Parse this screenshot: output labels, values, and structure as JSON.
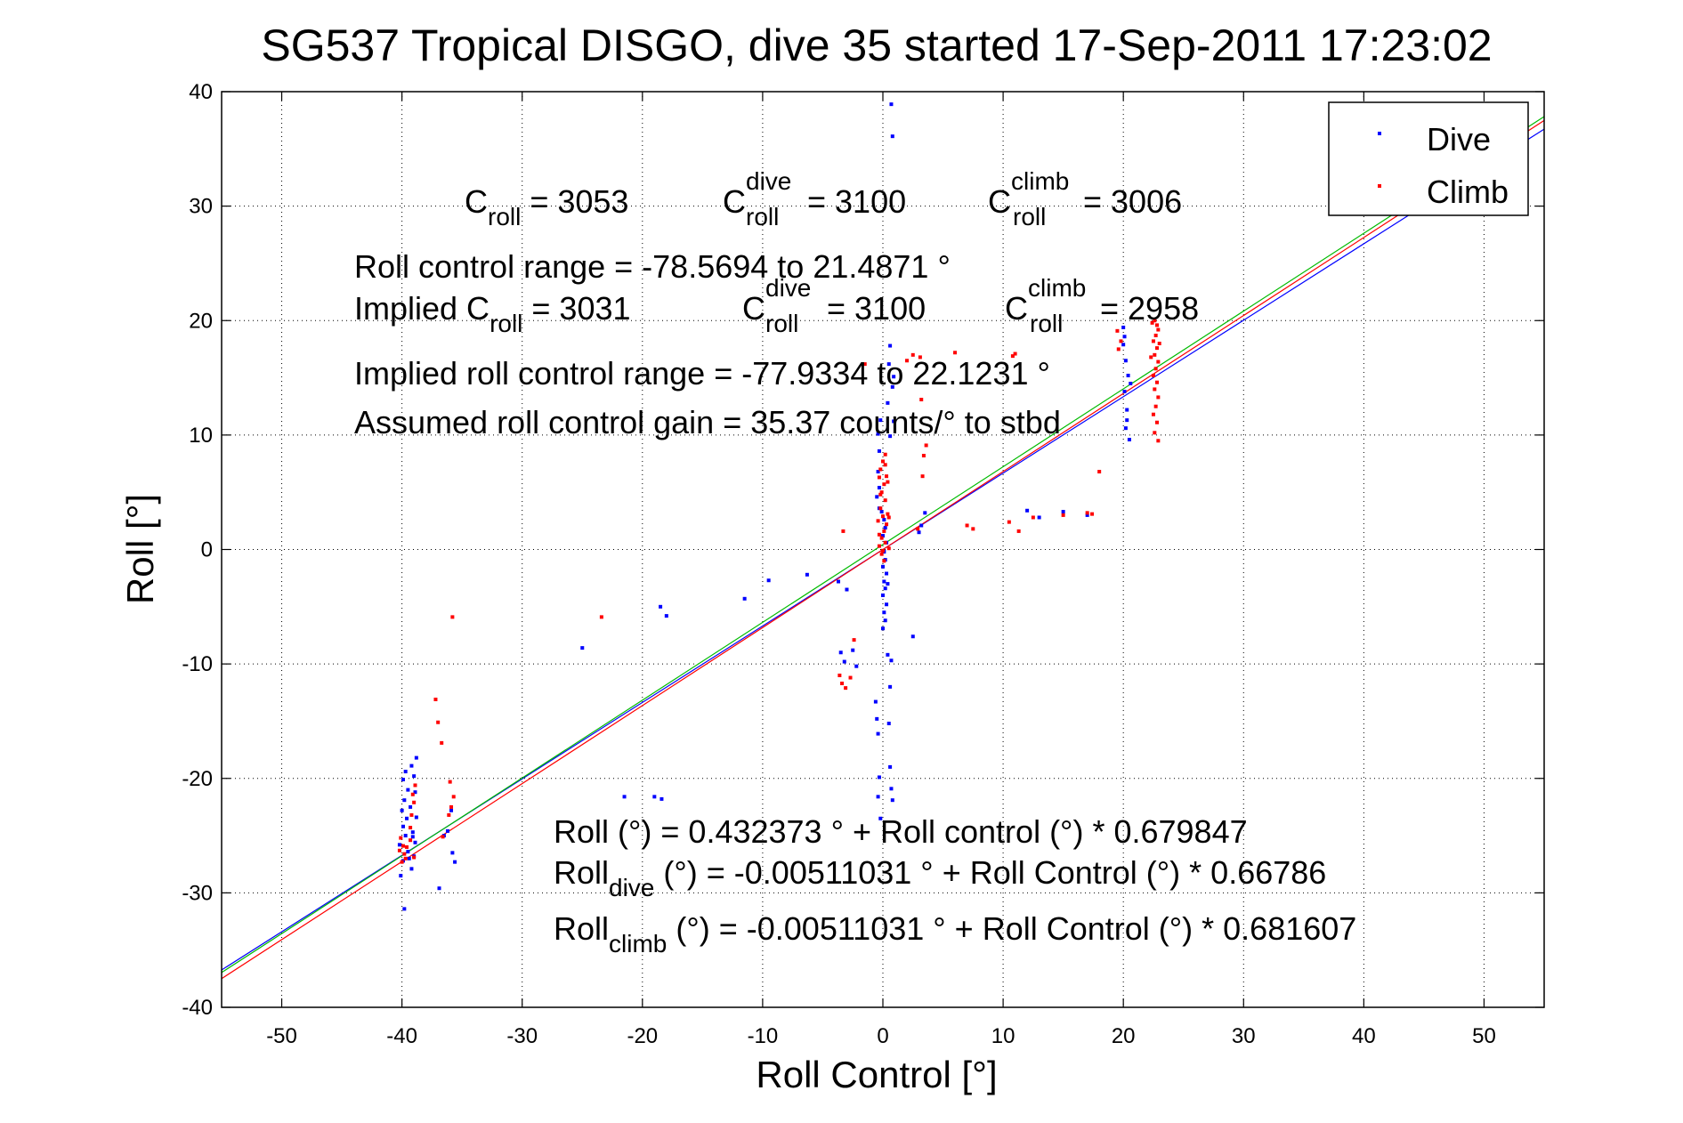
{
  "title": "SG537 Tropical DISGO, dive 35 started 17-Sep-2011 17:23:02",
  "chart_data": {
    "type": "scatter",
    "xlabel": "Roll Control [°]",
    "ylabel": "Roll [°]",
    "xlim": [
      -55,
      55
    ],
    "ylim": [
      -40,
      40
    ],
    "xticks": [
      -50,
      -40,
      -30,
      -20,
      -10,
      0,
      10,
      20,
      30,
      40,
      50
    ],
    "yticks": [
      -40,
      -30,
      -20,
      -10,
      0,
      10,
      20,
      30,
      40
    ],
    "grid": true,
    "legend_position": "top-right",
    "legend": [
      {
        "label": "Dive",
        "color": "#0000ff"
      },
      {
        "label": "Climb",
        "color": "#ff0000"
      }
    ],
    "fit_lines": [
      {
        "color": "#0000ff",
        "intercept": -0.00511031,
        "slope": 0.66786
      },
      {
        "color": "#ff0000",
        "intercept": -0.00511031,
        "slope": 0.681607
      },
      {
        "color": "#00bb00",
        "intercept": 0.432373,
        "slope": 0.679847
      }
    ],
    "annotations": {
      "c_roll": "= 3053",
      "c_roll_dive": "= 3100",
      "c_roll_climb": "= 3006",
      "range": "Roll control range = -78.5694 to 21.4871 °",
      "implied_c_roll": "= 3031",
      "implied_c_roll_dive": "= 3100",
      "implied_c_roll_climb": "= 2958",
      "implied_range": "Implied roll control range = -77.9334 to 22.1231 °",
      "gain": "Assumed roll control gain = 35.37 counts/° to stbd",
      "eq_all": "Roll (°) = 0.432373 ° + Roll control (°) * 0.679847",
      "eq_dive": "(°) = -0.00511031 ° + Roll Control (°) * 0.66786",
      "eq_climb": "(°) = -0.00511031 ° + Roll Control (°) * 0.681607",
      "c_label": "C",
      "roll_label": "Roll",
      "implied_prefix": "Implied C",
      "sub_roll": "roll",
      "sup_dive": "dive",
      "sup_climb": "climb",
      "sub_dive": "dive",
      "sub_climb": "climb"
    },
    "series": [
      {
        "name": "Dive",
        "color": "#0000ff",
        "points": [
          [
            -39.8,
            -31.4
          ],
          [
            -40.1,
            -28.5
          ],
          [
            -39.9,
            -27.2
          ],
          [
            -39.5,
            -26.4
          ],
          [
            -40.2,
            -25.8
          ],
          [
            -39.7,
            -25.0
          ],
          [
            -39.9,
            -24.2
          ],
          [
            -39.6,
            -23.5
          ],
          [
            -40.0,
            -22.8
          ],
          [
            -39.8,
            -21.9
          ],
          [
            -39.5,
            -21.0
          ],
          [
            -39.9,
            -20.1
          ],
          [
            -39.7,
            -19.4
          ],
          [
            -39.2,
            -27.9
          ],
          [
            -39.0,
            -26.8
          ],
          [
            -38.9,
            -25.6
          ],
          [
            -39.1,
            -24.7
          ],
          [
            -38.8,
            -23.4
          ],
          [
            -39.3,
            -22.5
          ],
          [
            -38.9,
            -21.2
          ],
          [
            -39.0,
            -19.8
          ],
          [
            -39.2,
            -18.9
          ],
          [
            -38.8,
            -18.2
          ],
          [
            -39.4,
            -27.0
          ],
          [
            -39.1,
            -25.1
          ],
          [
            -36.9,
            -29.6
          ],
          [
            -36.5,
            -25.0
          ],
          [
            -36.2,
            -24.6
          ],
          [
            -35.8,
            -26.5
          ],
          [
            -35.6,
            -27.3
          ],
          [
            -35.9,
            -22.8
          ],
          [
            -25.0,
            -8.6
          ],
          [
            -21.5,
            -21.6
          ],
          [
            -19.0,
            -21.6
          ],
          [
            -18.4,
            -21.8
          ],
          [
            -18.5,
            -5.0
          ],
          [
            -18.0,
            -5.8
          ],
          [
            -11.5,
            -4.3
          ],
          [
            -9.5,
            -2.7
          ],
          [
            -6.3,
            -2.2
          ],
          [
            -3.7,
            -2.8
          ],
          [
            -3.5,
            -9.0
          ],
          [
            -3.2,
            -9.8
          ],
          [
            -3.0,
            -3.5
          ],
          [
            -2.5,
            -8.8
          ],
          [
            -2.2,
            -10.2
          ],
          [
            -0.6,
            -13.3
          ],
          [
            -0.5,
            -14.8
          ],
          [
            -0.3,
            -19.9
          ],
          [
            -0.4,
            -21.6
          ],
          [
            -0.2,
            -23.5
          ],
          [
            -0.4,
            -16.1
          ],
          [
            0.6,
            -19.0
          ],
          [
            0.7,
            -20.9
          ],
          [
            0.8,
            -21.9
          ],
          [
            0.5,
            -15.2
          ],
          [
            0.6,
            -12.0
          ],
          [
            0.7,
            -9.7
          ],
          [
            0.4,
            -9.2
          ],
          [
            -0.3,
            5.4
          ],
          [
            -0.4,
            6.8
          ],
          [
            -0.3,
            8.6
          ],
          [
            -0.4,
            10.1
          ],
          [
            -0.2,
            11.3
          ],
          [
            -0.5,
            4.6
          ],
          [
            -0.3,
            3.6
          ],
          [
            0.7,
            38.9
          ],
          [
            0.8,
            36.1
          ],
          [
            0.6,
            17.8
          ],
          [
            0.5,
            16.2
          ],
          [
            0.9,
            15.1
          ],
          [
            0.8,
            14.2
          ],
          [
            0.4,
            12.8
          ],
          [
            0.9,
            11.2
          ],
          [
            0.6,
            9.9
          ],
          [
            0.1,
            2.6
          ],
          [
            0.2,
            1.9
          ],
          [
            0.0,
            1.2
          ],
          [
            0.3,
            0.6
          ],
          [
            0.1,
            -0.2
          ],
          [
            0.2,
            -0.9
          ],
          [
            0.0,
            -1.5
          ],
          [
            0.3,
            -2.1
          ],
          [
            0.1,
            -2.8
          ],
          [
            0.2,
            -3.4
          ],
          [
            0.0,
            -4.0
          ],
          [
            0.3,
            -4.8
          ],
          [
            0.1,
            -5.5
          ],
          [
            0.2,
            -6.2
          ],
          [
            0.0,
            -6.9
          ],
          [
            -0.1,
            3.3
          ],
          [
            0.4,
            -3.0
          ],
          [
            2.5,
            -7.6
          ],
          [
            3.0,
            1.5
          ],
          [
            3.2,
            2.1
          ],
          [
            3.5,
            3.2
          ],
          [
            12.0,
            3.4
          ],
          [
            13.0,
            2.8
          ],
          [
            15.0,
            3.3
          ],
          [
            17.0,
            3.0
          ],
          [
            20.0,
            17.9
          ],
          [
            20.2,
            16.5
          ],
          [
            20.4,
            15.2
          ],
          [
            20.1,
            13.8
          ],
          [
            20.3,
            12.2
          ],
          [
            20.2,
            10.6
          ],
          [
            20.5,
            9.6
          ],
          [
            20.0,
            19.4
          ],
          [
            20.6,
            14.5
          ],
          [
            20.3,
            11.3
          ],
          [
            20.1,
            18.6
          ]
        ]
      },
      {
        "name": "Climb",
        "color": "#ff0000",
        "points": [
          [
            -40.0,
            -27.3
          ],
          [
            -39.8,
            -26.6
          ],
          [
            -39.9,
            -25.9
          ],
          [
            -40.1,
            -25.2
          ],
          [
            -39.6,
            -26.0
          ],
          [
            -39.7,
            -27.0
          ],
          [
            -40.2,
            -26.3
          ],
          [
            -39.3,
            -24.3
          ],
          [
            -39.2,
            -23.2
          ],
          [
            -39.0,
            -22.1
          ],
          [
            -39.1,
            -21.4
          ],
          [
            -38.9,
            -20.6
          ],
          [
            -39.3,
            -25.4
          ],
          [
            -39.0,
            -26.9
          ],
          [
            -37.2,
            -13.1
          ],
          [
            -37.0,
            -15.1
          ],
          [
            -36.7,
            -16.9
          ],
          [
            -36.6,
            -25.1
          ],
          [
            -35.8,
            -5.9
          ],
          [
            -36.0,
            -20.3
          ],
          [
            -35.7,
            -21.6
          ],
          [
            -36.1,
            -23.2
          ],
          [
            -35.9,
            -22.5
          ],
          [
            -23.4,
            -5.9
          ],
          [
            -3.3,
            1.6
          ],
          [
            -3.4,
            -11.7
          ],
          [
            -3.1,
            -12.1
          ],
          [
            -2.7,
            -11.2
          ],
          [
            -2.4,
            -7.9
          ],
          [
            -3.6,
            -11.0
          ],
          [
            -0.3,
            0.3
          ],
          [
            -0.1,
            1.0
          ],
          [
            0.1,
            1.6
          ],
          [
            0.3,
            2.2
          ],
          [
            0.0,
            2.9
          ],
          [
            -0.2,
            3.6
          ],
          [
            0.2,
            4.3
          ],
          [
            -0.1,
            5.0
          ],
          [
            0.1,
            5.7
          ],
          [
            0.3,
            6.4
          ],
          [
            -0.2,
            7.0
          ],
          [
            0.0,
            7.7
          ],
          [
            0.2,
            8.3
          ],
          [
            -0.1,
            -0.4
          ],
          [
            0.1,
            -1.0
          ],
          [
            0.2,
            0.6
          ],
          [
            -0.3,
            1.3
          ],
          [
            0.4,
            3.1
          ],
          [
            -0.4,
            2.5
          ],
          [
            0.5,
            0.1
          ],
          [
            0.0,
            -0.1
          ],
          [
            -0.2,
            4.8
          ],
          [
            0.4,
            5.9
          ],
          [
            -0.3,
            6.3
          ],
          [
            0.2,
            7.4
          ],
          [
            0.5,
            2.8
          ],
          [
            -1.5,
            16.2
          ],
          [
            2.0,
            16.5
          ],
          [
            2.5,
            17.0
          ],
          [
            3.1,
            16.8
          ],
          [
            3.2,
            13.1
          ],
          [
            3.6,
            9.1
          ],
          [
            3.3,
            6.4
          ],
          [
            2.9,
            1.8
          ],
          [
            3.4,
            8.2
          ],
          [
            6.0,
            17.2
          ],
          [
            10.8,
            16.9
          ],
          [
            11.0,
            17.1
          ],
          [
            7.0,
            2.1
          ],
          [
            7.5,
            1.8
          ],
          [
            10.5,
            2.4
          ],
          [
            11.3,
            1.6
          ],
          [
            12.5,
            2.8
          ],
          [
            15.0,
            3.0
          ],
          [
            17.0,
            3.2
          ],
          [
            17.4,
            3.1
          ],
          [
            18.0,
            6.8
          ],
          [
            22.6,
            20.0
          ],
          [
            22.8,
            19.6
          ],
          [
            22.9,
            19.2
          ],
          [
            22.7,
            18.7
          ],
          [
            22.5,
            18.2
          ],
          [
            22.8,
            17.6
          ],
          [
            22.6,
            17.0
          ],
          [
            22.9,
            16.4
          ],
          [
            22.7,
            15.8
          ],
          [
            22.5,
            15.2
          ],
          [
            22.8,
            14.6
          ],
          [
            22.6,
            14.0
          ],
          [
            22.9,
            13.3
          ],
          [
            22.7,
            12.5
          ],
          [
            22.5,
            11.8
          ],
          [
            22.8,
            11.1
          ],
          [
            22.6,
            10.2
          ],
          [
            22.9,
            9.5
          ],
          [
            22.4,
            19.8
          ],
          [
            23.0,
            18.0
          ],
          [
            22.3,
            16.8
          ],
          [
            19.8,
            18.2
          ],
          [
            19.5,
            19.1
          ],
          [
            19.6,
            17.5
          ]
        ]
      }
    ]
  }
}
